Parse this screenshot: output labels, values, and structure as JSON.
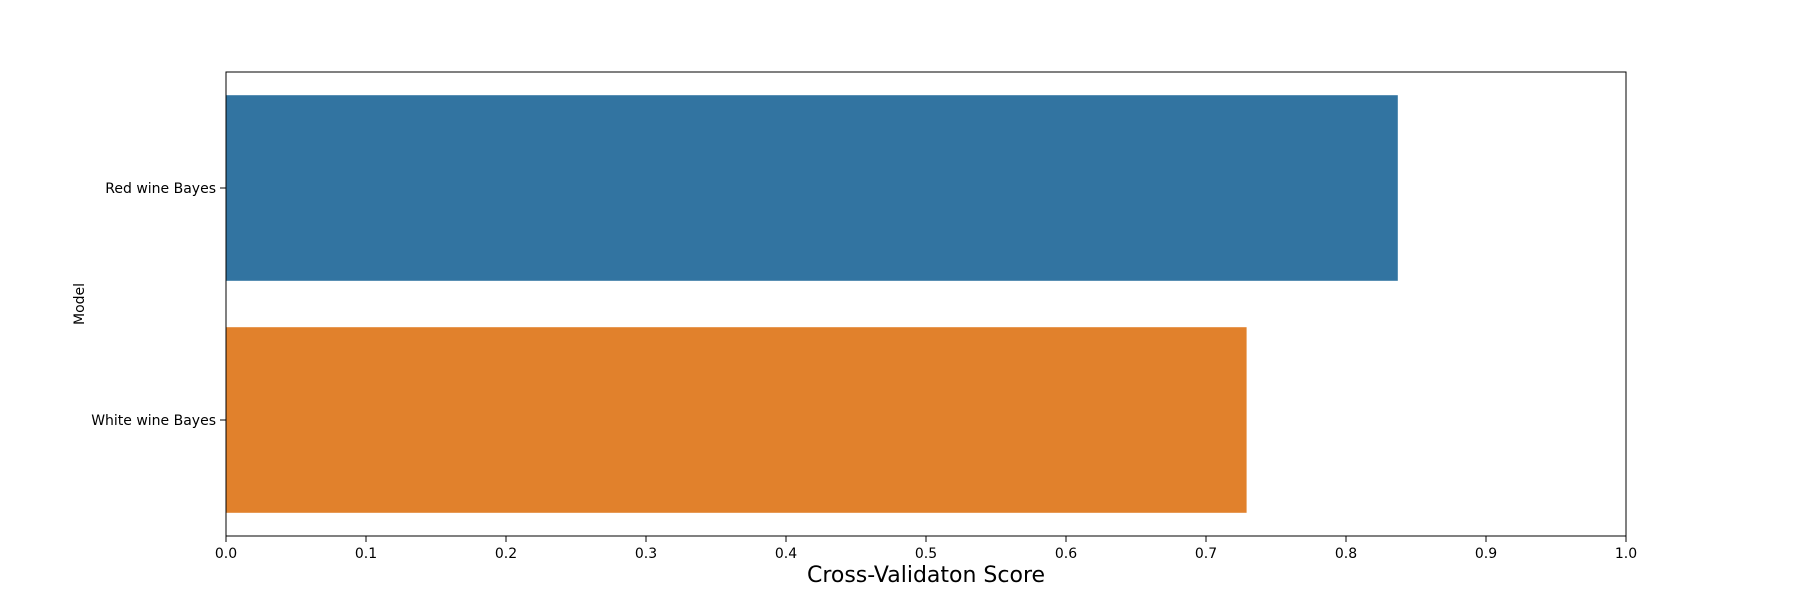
{
  "chart_data": {
    "type": "bar",
    "orientation": "horizontal",
    "categories": [
      "Red wine Bayes",
      "White wine Bayes"
    ],
    "values": [
      0.837,
      0.729
    ],
    "colors": [
      "#3274a1",
      "#e1812c"
    ],
    "xlabel": "Cross-Validaton Score",
    "ylabel": "Model",
    "xlim": [
      0.0,
      1.0
    ],
    "xticks": [
      "0.0",
      "0.1",
      "0.2",
      "0.3",
      "0.4",
      "0.5",
      "0.6",
      "0.7",
      "0.8",
      "0.9",
      "1.0"
    ],
    "grid": false,
    "legend": "none"
  }
}
